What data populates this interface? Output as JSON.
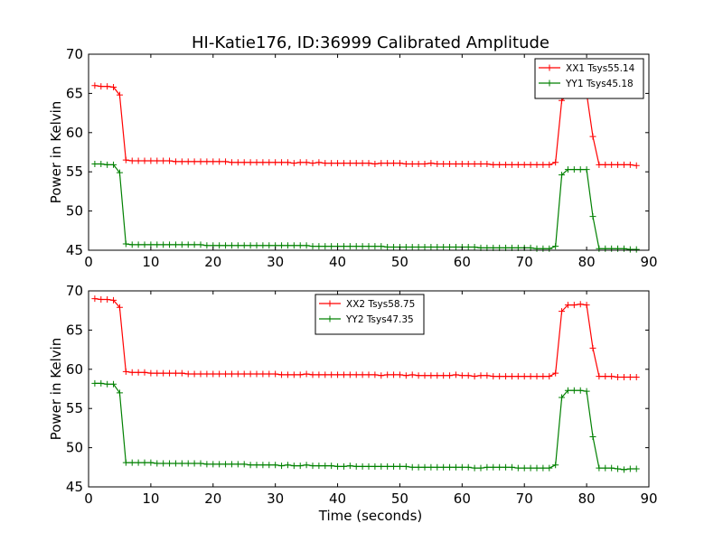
{
  "figure": {
    "title": "HI-Katie176, ID:36999 Calibrated Amplitude",
    "xlabel": "Time (seconds)"
  },
  "chart_data": [
    {
      "type": "line",
      "title": "HI-Katie176, ID:36999 Calibrated Amplitude",
      "xlabel": "",
      "ylabel": "Power in Kelvin",
      "xlim": [
        0,
        90
      ],
      "ylim": [
        45,
        70
      ],
      "xticks": [
        0,
        10,
        20,
        30,
        40,
        50,
        60,
        70,
        80,
        90
      ],
      "yticks": [
        45,
        50,
        55,
        60,
        65,
        70
      ],
      "grid": false,
      "legend_placement": "top-right",
      "marker": "+",
      "x": [
        1,
        2,
        3,
        4,
        5,
        6,
        7,
        8,
        9,
        10,
        11,
        12,
        13,
        14,
        15,
        16,
        17,
        18,
        19,
        20,
        21,
        22,
        23,
        24,
        25,
        26,
        27,
        28,
        29,
        30,
        31,
        32,
        33,
        34,
        35,
        36,
        37,
        38,
        39,
        40,
        41,
        42,
        43,
        44,
        45,
        46,
        47,
        48,
        49,
        50,
        51,
        52,
        53,
        54,
        55,
        56,
        57,
        58,
        59,
        60,
        61,
        62,
        63,
        64,
        65,
        66,
        67,
        68,
        69,
        70,
        71,
        72,
        73,
        74,
        75,
        76,
        77,
        78,
        79,
        80,
        81,
        82,
        83,
        84,
        85,
        86,
        87,
        88
      ],
      "series": [
        {
          "name": "XX1 Tsys55.14",
          "color": "#ff0000",
          "values": [
            66.0,
            65.9,
            65.9,
            65.8,
            64.8,
            56.5,
            56.4,
            56.4,
            56.4,
            56.4,
            56.4,
            56.4,
            56.4,
            56.3,
            56.3,
            56.3,
            56.3,
            56.3,
            56.3,
            56.3,
            56.3,
            56.3,
            56.2,
            56.2,
            56.2,
            56.2,
            56.2,
            56.2,
            56.2,
            56.2,
            56.2,
            56.2,
            56.1,
            56.2,
            56.2,
            56.1,
            56.2,
            56.1,
            56.1,
            56.1,
            56.1,
            56.1,
            56.1,
            56.1,
            56.1,
            56.0,
            56.1,
            56.1,
            56.1,
            56.1,
            56.0,
            56.0,
            56.0,
            56.0,
            56.1,
            56.0,
            56.0,
            56.0,
            56.0,
            56.0,
            56.0,
            56.0,
            56.0,
            56.0,
            55.9,
            55.9,
            55.9,
            55.9,
            55.9,
            55.9,
            55.9,
            55.9,
            55.9,
            55.9,
            56.2,
            64.1,
            64.9,
            64.9,
            65.0,
            65.0,
            59.5,
            55.9,
            55.9,
            55.9,
            55.9,
            55.9,
            55.9,
            55.8
          ]
        },
        {
          "name": "YY1 Tsys45.18",
          "color": "#008000",
          "values": [
            56.0,
            56.0,
            55.9,
            55.9,
            54.9,
            45.8,
            45.7,
            45.7,
            45.7,
            45.7,
            45.7,
            45.7,
            45.7,
            45.7,
            45.7,
            45.7,
            45.7,
            45.7,
            45.6,
            45.6,
            45.6,
            45.6,
            45.6,
            45.6,
            45.6,
            45.6,
            45.6,
            45.6,
            45.6,
            45.6,
            45.6,
            45.6,
            45.6,
            45.6,
            45.6,
            45.5,
            45.5,
            45.5,
            45.5,
            45.5,
            45.5,
            45.5,
            45.5,
            45.5,
            45.5,
            45.5,
            45.5,
            45.4,
            45.4,
            45.4,
            45.4,
            45.4,
            45.4,
            45.4,
            45.4,
            45.4,
            45.4,
            45.4,
            45.4,
            45.4,
            45.4,
            45.4,
            45.3,
            45.3,
            45.3,
            45.3,
            45.3,
            45.3,
            45.3,
            45.3,
            45.3,
            45.2,
            45.2,
            45.2,
            45.5,
            54.6,
            55.3,
            55.3,
            55.3,
            55.3,
            49.3,
            45.2,
            45.2,
            45.2,
            45.2,
            45.2,
            45.1,
            45.1
          ]
        }
      ]
    },
    {
      "type": "line",
      "title": "",
      "xlabel": "Time (seconds)",
      "ylabel": "Power in Kelvin",
      "xlim": [
        0,
        90
      ],
      "ylim": [
        45,
        70
      ],
      "xticks": [
        0,
        10,
        20,
        30,
        40,
        50,
        60,
        70,
        80,
        90
      ],
      "yticks": [
        45,
        50,
        55,
        60,
        65,
        70
      ],
      "grid": false,
      "legend_placement": "top-center",
      "marker": "+",
      "x": [
        1,
        2,
        3,
        4,
        5,
        6,
        7,
        8,
        9,
        10,
        11,
        12,
        13,
        14,
        15,
        16,
        17,
        18,
        19,
        20,
        21,
        22,
        23,
        24,
        25,
        26,
        27,
        28,
        29,
        30,
        31,
        32,
        33,
        34,
        35,
        36,
        37,
        38,
        39,
        40,
        41,
        42,
        43,
        44,
        45,
        46,
        47,
        48,
        49,
        50,
        51,
        52,
        53,
        54,
        55,
        56,
        57,
        58,
        59,
        60,
        61,
        62,
        63,
        64,
        65,
        66,
        67,
        68,
        69,
        70,
        71,
        72,
        73,
        74,
        75,
        76,
        77,
        78,
        79,
        80,
        81,
        82,
        83,
        84,
        85,
        86,
        87,
        88
      ],
      "series": [
        {
          "name": "XX2 Tsys58.75",
          "color": "#ff0000",
          "values": [
            69.0,
            68.9,
            68.9,
            68.8,
            67.9,
            59.7,
            59.6,
            59.6,
            59.6,
            59.5,
            59.5,
            59.5,
            59.5,
            59.5,
            59.5,
            59.4,
            59.4,
            59.4,
            59.4,
            59.4,
            59.4,
            59.4,
            59.4,
            59.4,
            59.4,
            59.4,
            59.4,
            59.4,
            59.4,
            59.4,
            59.3,
            59.3,
            59.3,
            59.3,
            59.4,
            59.3,
            59.3,
            59.3,
            59.3,
            59.3,
            59.3,
            59.3,
            59.3,
            59.3,
            59.3,
            59.3,
            59.2,
            59.3,
            59.3,
            59.3,
            59.2,
            59.3,
            59.2,
            59.2,
            59.2,
            59.2,
            59.2,
            59.2,
            59.3,
            59.2,
            59.2,
            59.1,
            59.2,
            59.2,
            59.1,
            59.1,
            59.1,
            59.1,
            59.1,
            59.1,
            59.1,
            59.1,
            59.1,
            59.1,
            59.5,
            67.4,
            68.2,
            68.2,
            68.3,
            68.2,
            62.7,
            59.1,
            59.1,
            59.1,
            59.0,
            59.0,
            59.0,
            59.0
          ]
        },
        {
          "name": "YY2 Tsys47.35",
          "color": "#008000",
          "values": [
            58.2,
            58.2,
            58.1,
            58.1,
            57.0,
            48.1,
            48.1,
            48.1,
            48.1,
            48.1,
            48.0,
            48.0,
            48.0,
            48.0,
            48.0,
            48.0,
            48.0,
            48.0,
            47.9,
            47.9,
            47.9,
            47.9,
            47.9,
            47.9,
            47.9,
            47.8,
            47.8,
            47.8,
            47.8,
            47.8,
            47.7,
            47.8,
            47.7,
            47.7,
            47.8,
            47.7,
            47.7,
            47.7,
            47.7,
            47.6,
            47.6,
            47.7,
            47.6,
            47.6,
            47.6,
            47.6,
            47.6,
            47.6,
            47.6,
            47.6,
            47.6,
            47.5,
            47.5,
            47.5,
            47.5,
            47.5,
            47.5,
            47.5,
            47.5,
            47.5,
            47.5,
            47.4,
            47.4,
            47.5,
            47.5,
            47.5,
            47.5,
            47.5,
            47.4,
            47.4,
            47.4,
            47.4,
            47.4,
            47.4,
            47.8,
            56.4,
            57.3,
            57.3,
            57.3,
            57.2,
            51.4,
            47.4,
            47.4,
            47.4,
            47.3,
            47.2,
            47.3,
            47.3
          ]
        }
      ]
    }
  ]
}
